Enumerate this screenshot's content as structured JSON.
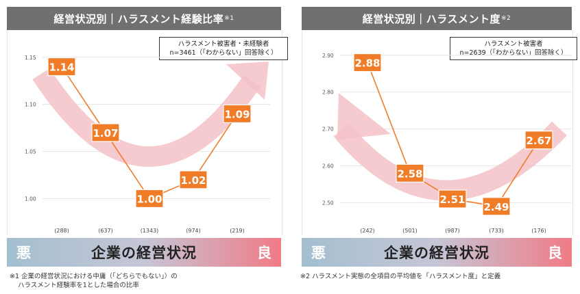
{
  "colors": {
    "accent": "#f07c28",
    "arrow": "#f3c2c8",
    "title_bg": "#707070",
    "grid": "#e6e6e6"
  },
  "left": {
    "title": "経営状況別｜ハラスメント経験比率",
    "title_mark": "※1",
    "legend_line1": "ハラスメント被害者・未経験者",
    "legend_line2": "n=3461（「わからない」回答除く）",
    "bad_label": "悪",
    "axis_title": "企業の経営状況",
    "good_label": "良",
    "footnote_line1": "※1 企業の経営状況における中庸（「どちらでもない」）の",
    "footnote_line2": "ハラスメント経験率を1とした場合の比率"
  },
  "right": {
    "title": "経営状況別｜ハラスメント度",
    "title_mark": "※2",
    "legend_line1": "ハラスメント被害者",
    "legend_line2": "n=2639（「わからない」回答除く）",
    "bad_label": "悪",
    "axis_title": "企業の経営状況",
    "good_label": "良",
    "footnote_line1": "※2 ハラスメント実態の全項目の平均値を「ハラスメント度」と定義"
  },
  "chart_data": [
    {
      "type": "line",
      "title": "経営状況別｜ハラスメント経験比率※1",
      "categories": [
        "(288)",
        "(637)",
        "(1343)",
        "(974)",
        "(219)"
      ],
      "values": [
        1.14,
        1.07,
        1.0,
        1.02,
        1.09
      ],
      "value_labels": [
        "1.14",
        "1.07",
        "1.00",
        "1.02",
        "1.09"
      ],
      "ylim": [
        0.98,
        1.16
      ],
      "yticks": [
        1.0,
        1.05,
        1.1,
        1.15
      ],
      "ytick_labels": [
        "1.00",
        "1.05",
        "1.10",
        "1.15"
      ],
      "xlabel": "企業の経営状況",
      "grid": true
    },
    {
      "type": "line",
      "title": "経営状況別｜ハラスメント度※2",
      "categories": [
        "(242)",
        "(501)",
        "(987)",
        "(733)",
        "(176)"
      ],
      "values": [
        2.88,
        2.58,
        2.51,
        2.49,
        2.67
      ],
      "value_labels": [
        "2.88",
        "2.58",
        "2.51",
        "2.49",
        "2.67"
      ],
      "ylim": [
        2.46,
        2.92
      ],
      "yticks": [
        2.5,
        2.6,
        2.7,
        2.8,
        2.9
      ],
      "ytick_labels": [
        "2.50",
        "2.60",
        "2.70",
        "2.80",
        "2.90"
      ],
      "xlabel": "企業の経営状況",
      "grid": true
    }
  ]
}
